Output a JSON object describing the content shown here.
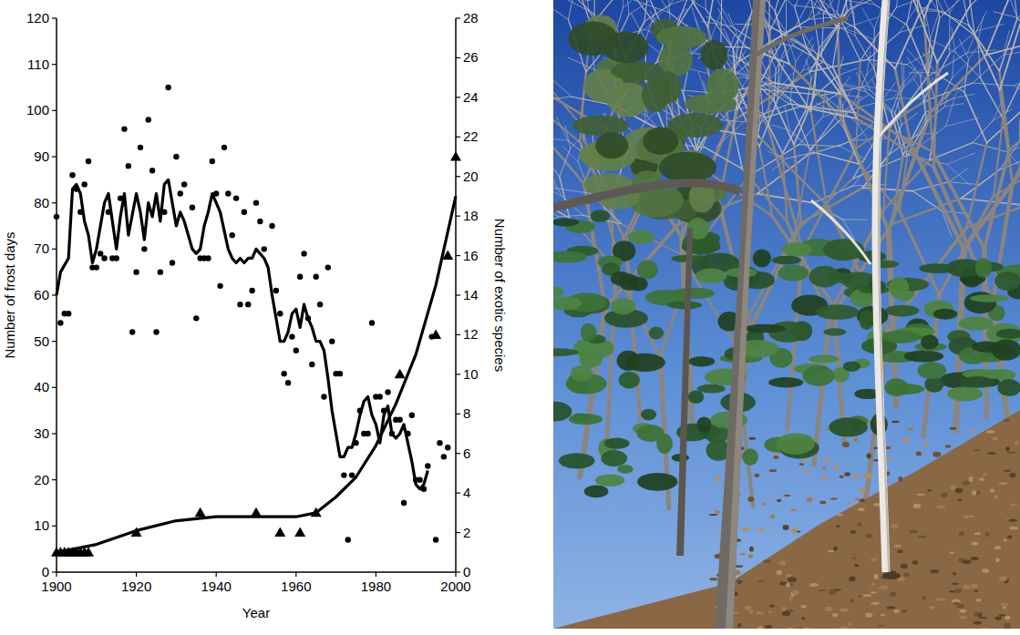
{
  "chart_data": {
    "type": "scatter",
    "xlabel": "Year",
    "ylabel": "Number of frost days",
    "y2label": "Number of exotic species",
    "xlim": [
      1900,
      2000
    ],
    "xticks": [
      1900,
      1920,
      1940,
      1960,
      1980,
      2000
    ],
    "ylim": [
      0,
      120
    ],
    "yticks": [
      0,
      10,
      20,
      30,
      40,
      50,
      60,
      70,
      80,
      90,
      100,
      110,
      120
    ],
    "y2lim": [
      0,
      28
    ],
    "y2ticks": [
      0,
      2,
      4,
      6,
      8,
      10,
      12,
      14,
      16,
      18,
      20,
      22,
      24,
      26,
      28
    ],
    "grid": false,
    "series": [
      {
        "type": "scatter",
        "marker": "circle",
        "color": "#000000",
        "x": [
          1900,
          1901,
          1902,
          1903,
          1904,
          1905,
          1906,
          1907,
          1908,
          1909,
          1910,
          1911,
          1912,
          1913,
          1914,
          1915,
          1916,
          1917,
          1918,
          1919,
          1920,
          1921,
          1922,
          1923,
          1924,
          1925,
          1926,
          1927,
          1928,
          1929,
          1930,
          1931,
          1932,
          1934,
          1935,
          1936,
          1937,
          1938,
          1939,
          1940,
          1941,
          1942,
          1943,
          1944,
          1945,
          1946,
          1947,
          1948,
          1949,
          1950,
          1951,
          1952,
          1954,
          1955,
          1956,
          1957,
          1958,
          1959,
          1960,
          1961,
          1962,
          1963,
          1964,
          1965,
          1966,
          1967,
          1968,
          1969,
          1970,
          1971,
          1972,
          1973,
          1974,
          1975,
          1976,
          1977,
          1978,
          1979,
          1980,
          1981,
          1982,
          1983,
          1984,
          1985,
          1986,
          1987,
          1988,
          1989,
          1990,
          1991,
          1992,
          1993,
          1994,
          1995,
          1996,
          1997,
          1998
        ],
        "values": [
          77,
          54,
          56,
          56,
          86,
          83,
          78,
          84,
          89,
          66,
          66,
          69,
          68,
          78,
          68,
          68,
          81,
          96,
          88,
          52,
          65,
          92,
          70,
          98,
          87,
          52,
          65,
          78,
          105,
          67,
          90,
          82,
          84,
          79,
          55,
          68,
          68,
          68,
          89,
          82,
          62,
          92,
          82,
          73,
          81,
          58,
          78,
          58,
          61,
          80,
          76,
          70,
          75,
          61,
          56,
          43,
          41,
          51,
          48,
          64,
          69,
          55,
          45,
          64,
          58,
          38,
          66,
          50,
          43,
          43,
          21,
          7,
          21,
          28,
          35,
          30,
          30,
          54,
          38,
          38,
          35,
          39,
          30,
          33,
          33,
          15,
          30,
          34,
          20,
          20,
          18,
          23,
          51,
          7,
          28,
          25,
          27
        ]
      },
      {
        "type": "line",
        "line_style": "solid",
        "color": "#000000",
        "x": [
          1900,
          1901,
          1903,
          1904,
          1905,
          1906,
          1907,
          1908,
          1909,
          1910,
          1912,
          1913,
          1914,
          1915,
          1916,
          1917,
          1918,
          1920,
          1921,
          1922,
          1923,
          1924,
          1925,
          1926,
          1927,
          1928,
          1929,
          1930,
          1931,
          1932,
          1933,
          1934,
          1935,
          1936,
          1937,
          1938,
          1939,
          1940,
          1941,
          1942,
          1943,
          1944,
          1945,
          1946,
          1947,
          1948,
          1949,
          1950,
          1952,
          1953,
          1954,
          1955,
          1956,
          1957,
          1958,
          1959,
          1960,
          1961,
          1962,
          1963,
          1964,
          1965,
          1966,
          1967,
          1968,
          1969,
          1970,
          1971,
          1972,
          1973,
          1974,
          1975,
          1976,
          1977,
          1978,
          1979,
          1980,
          1981,
          1982,
          1983,
          1984,
          1985,
          1986,
          1987,
          1988,
          1989,
          1990,
          1991,
          1992,
          1993
        ],
        "values": [
          60,
          65,
          68,
          83,
          84,
          82,
          76,
          73,
          67,
          70,
          80,
          82,
          76,
          70,
          77,
          82,
          73,
          82,
          78,
          72,
          80,
          77,
          82,
          76,
          84,
          85,
          80,
          75,
          78,
          76,
          73,
          70,
          69,
          70,
          75,
          78,
          82,
          80,
          78,
          74,
          70,
          68,
          67,
          68,
          67,
          68,
          68,
          70,
          68,
          66,
          60,
          55,
          50,
          50,
          52,
          56,
          57,
          53,
          58,
          55,
          53,
          50,
          50,
          48,
          42,
          35,
          30,
          25,
          25,
          27,
          27,
          30,
          34,
          37,
          38,
          34,
          32,
          28,
          34,
          36,
          30,
          29,
          30,
          32,
          28,
          24,
          19,
          18,
          19,
          22
        ]
      },
      {
        "type": "scatter",
        "marker": "triangle",
        "color": "#000000",
        "axis": "y2",
        "x": [
          1900,
          1901,
          1902,
          1903,
          1904,
          1905,
          1906,
          1907,
          1908,
          1920,
          1936,
          1950,
          1956,
          1961,
          1965,
          1986,
          1995,
          1998,
          2000
        ],
        "values": [
          1,
          1,
          1,
          1,
          1,
          1,
          1,
          1,
          1,
          2,
          3,
          3,
          2,
          2,
          3,
          10,
          12,
          16,
          21
        ]
      },
      {
        "type": "line",
        "line_style": "solid",
        "color": "#000000",
        "axis": "y2",
        "x": [
          1900,
          1910,
          1920,
          1930,
          1940,
          1950,
          1960,
          1965,
          1970,
          1975,
          1980,
          1985,
          1990,
          1995,
          2000
        ],
        "values": [
          1,
          1.4,
          2.1,
          2.6,
          2.8,
          2.8,
          2.8,
          3,
          3.8,
          4.8,
          6.4,
          8.5,
          11,
          14.5,
          19
        ]
      }
    ]
  }
}
